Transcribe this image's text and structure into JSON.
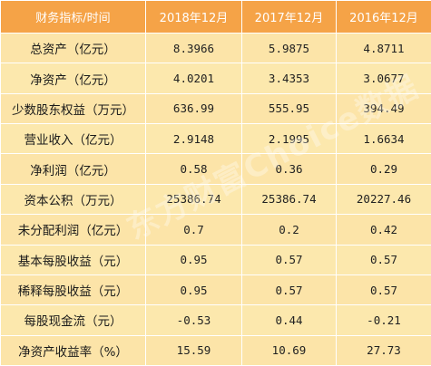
{
  "header": {
    "label": "财务指标/时间",
    "periods": [
      "2018年12月",
      "2017年12月",
      "2016年12月"
    ]
  },
  "rows": [
    {
      "label": "总资产（亿元）",
      "values": [
        "8.3966",
        "5.9875",
        "4.8711"
      ]
    },
    {
      "label": "净资产（亿元）",
      "values": [
        "4.0201",
        "3.4353",
        "3.0677"
      ]
    },
    {
      "label": "少数股东权益（万元）",
      "values": [
        "636.99",
        "555.95",
        "394.49"
      ]
    },
    {
      "label": "营业收入（亿元）",
      "values": [
        "2.9148",
        "2.1995",
        "1.6634"
      ]
    },
    {
      "label": "净利润（亿元）",
      "values": [
        "0.58",
        "0.36",
        "0.29"
      ]
    },
    {
      "label": "资本公积（万元）",
      "values": [
        "25386.74",
        "25386.74",
        "20227.46"
      ]
    },
    {
      "label": "未分配利润（亿元）",
      "values": [
        "0.7",
        "0.2",
        "0.42"
      ]
    },
    {
      "label": "基本每股收益（元）",
      "values": [
        "0.95",
        "0.57",
        "0.57"
      ]
    },
    {
      "label": "稀释每股收益（元）",
      "values": [
        "0.95",
        "0.57",
        "0.57"
      ]
    },
    {
      "label": "每股现金流（元）",
      "values": [
        "-0.53",
        "0.44",
        "-0.21"
      ]
    },
    {
      "label": "净资产收益率（%）",
      "values": [
        "15.59",
        "10.69",
        "27.73"
      ]
    }
  ],
  "watermark": "东方财富Choice数据",
  "colors": {
    "header_bg": "#f5a347",
    "row_bg": "#fce8ad",
    "border": "#ffffff"
  }
}
